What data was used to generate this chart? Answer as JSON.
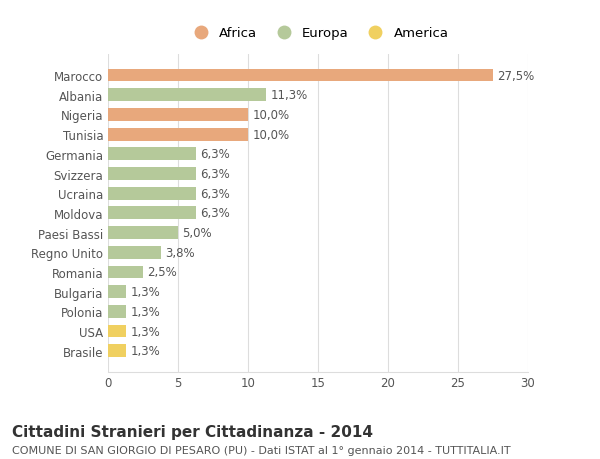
{
  "countries": [
    "Marocco",
    "Albania",
    "Nigeria",
    "Tunisia",
    "Germania",
    "Svizzera",
    "Ucraina",
    "Moldova",
    "Paesi Bassi",
    "Regno Unito",
    "Romania",
    "Bulgaria",
    "Polonia",
    "USA",
    "Brasile"
  ],
  "values": [
    27.5,
    11.3,
    10.0,
    10.0,
    6.3,
    6.3,
    6.3,
    6.3,
    5.0,
    3.8,
    2.5,
    1.3,
    1.3,
    1.3,
    1.3
  ],
  "labels": [
    "27,5%",
    "11,3%",
    "10,0%",
    "10,0%",
    "6,3%",
    "6,3%",
    "6,3%",
    "6,3%",
    "5,0%",
    "3,8%",
    "2,5%",
    "1,3%",
    "1,3%",
    "1,3%",
    "1,3%"
  ],
  "continents": [
    "Africa",
    "Europa",
    "Africa",
    "Africa",
    "Europa",
    "Europa",
    "Europa",
    "Europa",
    "Europa",
    "Europa",
    "Europa",
    "Europa",
    "Europa",
    "America",
    "America"
  ],
  "colors": {
    "Africa": "#E8A87C",
    "Europa": "#B5C99A",
    "America": "#F0D060"
  },
  "legend_order": [
    "Africa",
    "Europa",
    "America"
  ],
  "xlim": [
    0,
    30
  ],
  "xticks": [
    0,
    5,
    10,
    15,
    20,
    25,
    30
  ],
  "title": "Cittadini Stranieri per Cittadinanza - 2014",
  "subtitle": "COMUNE DI SAN GIORGIO DI PESARO (PU) - Dati ISTAT al 1° gennaio 2014 - TUTTITALIA.IT",
  "bg_color": "#ffffff",
  "grid_color": "#dddddd",
  "label_fontsize": 8.5,
  "tick_fontsize": 8.5,
  "title_fontsize": 11,
  "subtitle_fontsize": 8
}
